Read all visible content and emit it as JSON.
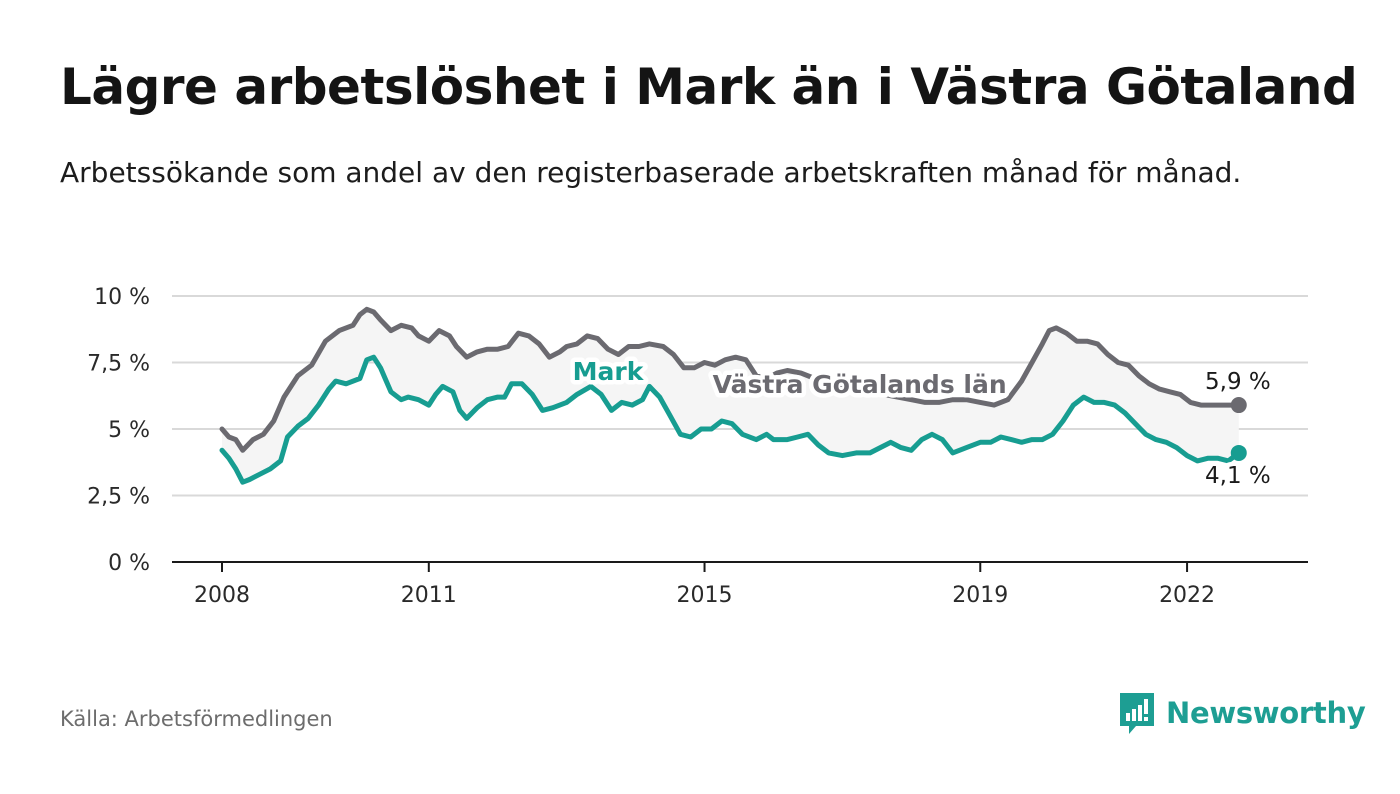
{
  "header": {
    "title": "Lägre arbetslöshet i Mark än i Västra Götaland",
    "subtitle": "Arbetssökande som andel av den registerbaserade arbetskraften månad för månad."
  },
  "footer": {
    "source": "Källa: Arbetsförmedlingen",
    "brand": "Newsworthy"
  },
  "chart_data": {
    "type": "line",
    "title": "Lägre arbetslöshet i Mark än i Västra Götaland",
    "subtitle": "Arbetssökande som andel av den registerbaserade arbetskraften månad för månad.",
    "xlabel": "",
    "ylabel": "",
    "ylim": [
      0,
      10
    ],
    "xlim": [
      2008,
      2023
    ],
    "grid": true,
    "y_ticks": [
      {
        "value": 0,
        "label": "0 %"
      },
      {
        "value": 2.5,
        "label": "2,5 %"
      },
      {
        "value": 5,
        "label": "5 %"
      },
      {
        "value": 7.5,
        "label": "7,5 %"
      },
      {
        "value": 10,
        "label": "10 %"
      }
    ],
    "x_ticks": [
      {
        "value": 2008,
        "label": "2008"
      },
      {
        "value": 2011,
        "label": "2011"
      },
      {
        "value": 2015,
        "label": "2015"
      },
      {
        "value": 2019,
        "label": "2019"
      },
      {
        "value": 2022,
        "label": "2022"
      }
    ],
    "series": [
      {
        "name": "Västra Götalands län",
        "color": "#6b6a70",
        "end_label": "5,9 %",
        "points": [
          [
            2008.0,
            5.0
          ],
          [
            2008.1,
            4.7
          ],
          [
            2008.2,
            4.6
          ],
          [
            2008.3,
            4.2
          ],
          [
            2008.45,
            4.6
          ],
          [
            2008.6,
            4.8
          ],
          [
            2008.75,
            5.3
          ],
          [
            2008.9,
            6.2
          ],
          [
            2009.1,
            7.0
          ],
          [
            2009.3,
            7.4
          ],
          [
            2009.5,
            8.3
          ],
          [
            2009.7,
            8.7
          ],
          [
            2009.9,
            8.9
          ],
          [
            2010.0,
            9.3
          ],
          [
            2010.1,
            9.5
          ],
          [
            2010.2,
            9.4
          ],
          [
            2010.3,
            9.1
          ],
          [
            2010.45,
            8.7
          ],
          [
            2010.6,
            8.9
          ],
          [
            2010.75,
            8.8
          ],
          [
            2010.85,
            8.5
          ],
          [
            2011.0,
            8.3
          ],
          [
            2011.15,
            8.7
          ],
          [
            2011.3,
            8.5
          ],
          [
            2011.4,
            8.1
          ],
          [
            2011.55,
            7.7
          ],
          [
            2011.7,
            7.9
          ],
          [
            2011.85,
            8.0
          ],
          [
            2012.0,
            8.0
          ],
          [
            2012.15,
            8.1
          ],
          [
            2012.3,
            8.6
          ],
          [
            2012.45,
            8.5
          ],
          [
            2012.6,
            8.2
          ],
          [
            2012.75,
            7.7
          ],
          [
            2012.9,
            7.9
          ],
          [
            2013.0,
            8.1
          ],
          [
            2013.15,
            8.2
          ],
          [
            2013.3,
            8.5
          ],
          [
            2013.45,
            8.4
          ],
          [
            2013.6,
            8.0
          ],
          [
            2013.75,
            7.8
          ],
          [
            2013.9,
            8.1
          ],
          [
            2014.05,
            8.1
          ],
          [
            2014.2,
            8.2
          ],
          [
            2014.4,
            8.1
          ],
          [
            2014.55,
            7.8
          ],
          [
            2014.7,
            7.3
          ],
          [
            2014.85,
            7.3
          ],
          [
            2015.0,
            7.5
          ],
          [
            2015.15,
            7.4
          ],
          [
            2015.3,
            7.6
          ],
          [
            2015.45,
            7.7
          ],
          [
            2015.6,
            7.6
          ],
          [
            2015.75,
            7.0
          ],
          [
            2015.9,
            6.9
          ],
          [
            2016.05,
            7.1
          ],
          [
            2016.2,
            7.2
          ],
          [
            2016.4,
            7.1
          ],
          [
            2016.6,
            6.9
          ],
          [
            2016.8,
            6.7
          ],
          [
            2017.0,
            6.5
          ],
          [
            2017.2,
            6.4
          ],
          [
            2017.4,
            6.3
          ],
          [
            2017.6,
            6.3
          ],
          [
            2017.8,
            6.2
          ],
          [
            2018.0,
            6.1
          ],
          [
            2018.2,
            6.0
          ],
          [
            2018.4,
            6.0
          ],
          [
            2018.6,
            6.1
          ],
          [
            2018.8,
            6.1
          ],
          [
            2019.0,
            6.0
          ],
          [
            2019.2,
            5.9
          ],
          [
            2019.4,
            6.1
          ],
          [
            2019.6,
            6.8
          ],
          [
            2019.75,
            7.5
          ],
          [
            2019.9,
            8.2
          ],
          [
            2020.0,
            8.7
          ],
          [
            2020.1,
            8.8
          ],
          [
            2020.25,
            8.6
          ],
          [
            2020.4,
            8.3
          ],
          [
            2020.55,
            8.3
          ],
          [
            2020.7,
            8.2
          ],
          [
            2020.85,
            7.8
          ],
          [
            2021.0,
            7.5
          ],
          [
            2021.15,
            7.4
          ],
          [
            2021.3,
            7.0
          ],
          [
            2021.45,
            6.7
          ],
          [
            2021.6,
            6.5
          ],
          [
            2021.75,
            6.4
          ],
          [
            2021.9,
            6.3
          ],
          [
            2022.05,
            6.0
          ],
          [
            2022.2,
            5.9
          ],
          [
            2022.4,
            5.9
          ],
          [
            2022.6,
            5.9
          ],
          [
            2022.75,
            5.9
          ]
        ]
      },
      {
        "name": "Mark",
        "color": "#179d91",
        "end_label": "4,1 %",
        "points": [
          [
            2008.0,
            4.2
          ],
          [
            2008.1,
            3.9
          ],
          [
            2008.2,
            3.5
          ],
          [
            2008.3,
            3.0
          ],
          [
            2008.4,
            3.1
          ],
          [
            2008.55,
            3.3
          ],
          [
            2008.7,
            3.5
          ],
          [
            2008.85,
            3.8
          ],
          [
            2008.95,
            4.7
          ],
          [
            2009.1,
            5.1
          ],
          [
            2009.25,
            5.4
          ],
          [
            2009.4,
            5.9
          ],
          [
            2009.55,
            6.5
          ],
          [
            2009.65,
            6.8
          ],
          [
            2009.8,
            6.7
          ],
          [
            2010.0,
            6.9
          ],
          [
            2010.1,
            7.6
          ],
          [
            2010.2,
            7.7
          ],
          [
            2010.3,
            7.3
          ],
          [
            2010.45,
            6.4
          ],
          [
            2010.6,
            6.1
          ],
          [
            2010.7,
            6.2
          ],
          [
            2010.85,
            6.1
          ],
          [
            2011.0,
            5.9
          ],
          [
            2011.1,
            6.3
          ],
          [
            2011.2,
            6.6
          ],
          [
            2011.35,
            6.4
          ],
          [
            2011.45,
            5.7
          ],
          [
            2011.55,
            5.4
          ],
          [
            2011.7,
            5.8
          ],
          [
            2011.85,
            6.1
          ],
          [
            2012.0,
            6.2
          ],
          [
            2012.1,
            6.2
          ],
          [
            2012.2,
            6.7
          ],
          [
            2012.35,
            6.7
          ],
          [
            2012.5,
            6.3
          ],
          [
            2012.65,
            5.7
          ],
          [
            2012.8,
            5.8
          ],
          [
            2013.0,
            6.0
          ],
          [
            2013.15,
            6.3
          ],
          [
            2013.35,
            6.6
          ],
          [
            2013.5,
            6.3
          ],
          [
            2013.65,
            5.7
          ],
          [
            2013.8,
            6.0
          ],
          [
            2013.95,
            5.9
          ],
          [
            2014.1,
            6.1
          ],
          [
            2014.2,
            6.6
          ],
          [
            2014.35,
            6.2
          ],
          [
            2014.5,
            5.5
          ],
          [
            2014.65,
            4.8
          ],
          [
            2014.8,
            4.7
          ],
          [
            2014.95,
            5.0
          ],
          [
            2015.1,
            5.0
          ],
          [
            2015.25,
            5.3
          ],
          [
            2015.4,
            5.2
          ],
          [
            2015.55,
            4.8
          ],
          [
            2015.75,
            4.6
          ],
          [
            2015.9,
            4.8
          ],
          [
            2016.0,
            4.6
          ],
          [
            2016.2,
            4.6
          ],
          [
            2016.35,
            4.7
          ],
          [
            2016.5,
            4.8
          ],
          [
            2016.65,
            4.4
          ],
          [
            2016.8,
            4.1
          ],
          [
            2017.0,
            4.0
          ],
          [
            2017.2,
            4.1
          ],
          [
            2017.4,
            4.1
          ],
          [
            2017.55,
            4.3
          ],
          [
            2017.7,
            4.5
          ],
          [
            2017.85,
            4.3
          ],
          [
            2018.0,
            4.2
          ],
          [
            2018.15,
            4.6
          ],
          [
            2018.3,
            4.8
          ],
          [
            2018.45,
            4.6
          ],
          [
            2018.6,
            4.1
          ],
          [
            2018.8,
            4.3
          ],
          [
            2019.0,
            4.5
          ],
          [
            2019.15,
            4.5
          ],
          [
            2019.3,
            4.7
          ],
          [
            2019.45,
            4.6
          ],
          [
            2019.6,
            4.5
          ],
          [
            2019.75,
            4.6
          ],
          [
            2019.9,
            4.6
          ],
          [
            2020.05,
            4.8
          ],
          [
            2020.2,
            5.3
          ],
          [
            2020.35,
            5.9
          ],
          [
            2020.5,
            6.2
          ],
          [
            2020.65,
            6.0
          ],
          [
            2020.8,
            6.0
          ],
          [
            2020.95,
            5.9
          ],
          [
            2021.1,
            5.6
          ],
          [
            2021.25,
            5.2
          ],
          [
            2021.4,
            4.8
          ],
          [
            2021.55,
            4.6
          ],
          [
            2021.7,
            4.5
          ],
          [
            2021.85,
            4.3
          ],
          [
            2022.0,
            4.0
          ],
          [
            2022.15,
            3.8
          ],
          [
            2022.3,
            3.9
          ],
          [
            2022.45,
            3.9
          ],
          [
            2022.6,
            3.8
          ],
          [
            2022.75,
            4.1
          ]
        ]
      }
    ]
  }
}
